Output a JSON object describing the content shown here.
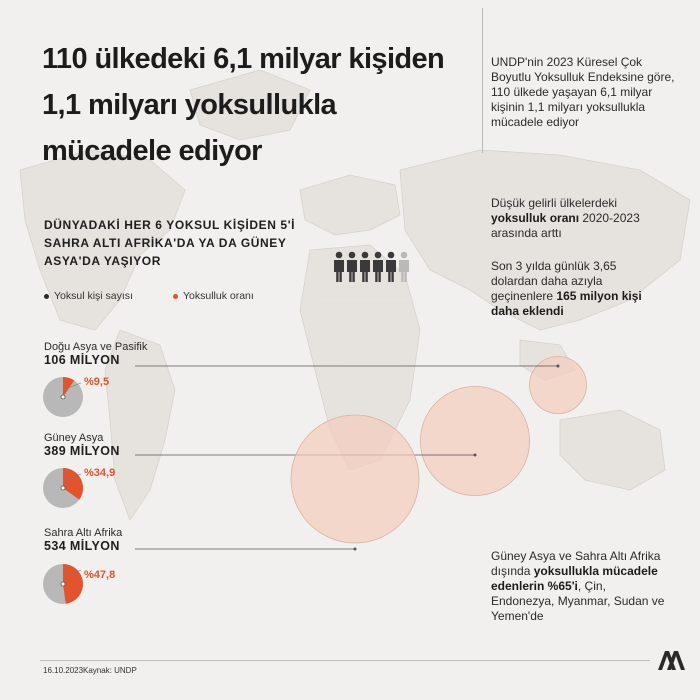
{
  "title": "110 ülkedeki 6,1 milyar kişiden 1,1 milyarı yoksullukla mücadele ediyor",
  "intro": "UNDP'nin 2023 Küresel Çok Boyutlu Yoksulluk Endeksine göre, 110 ülkede yaşayan 6,1 milyar kişinin 1,1 milyarı yoksullukla mücadele ediyor",
  "fact1": {
    "pre": "Düşük gelirli ülkelerdeki ",
    "bold": "yoksulluk oranı",
    "post": " 2020-2023 arasında arttı"
  },
  "fact2": {
    "pre": "Son 3 yılda günlük 3,65 dolardan daha azıyla geçinenlere ",
    "bold": "165 milyon kişi daha eklendi",
    "post": ""
  },
  "fact3": {
    "pre": "Güney Asya ve Sahra Altı Afrika dışında ",
    "bold": "yoksullukla mücadele edenlerin %65'i",
    "post": ", Çin, Endonezya, Myanmar, Sudan ve Yemen'de"
  },
  "subheading": "DÜNYADAKİ HER 6 YOKSUL KİŞİDEN 5'İ SAHRA ALTI AFRİKA'DA YA DA GÜNEY ASYA'DA YAŞIYOR",
  "people_icons": {
    "total": 6,
    "highlighted": 5,
    "dark_color": "#3a3a3a",
    "light_color": "#b9b9b9"
  },
  "legend": {
    "count_label": "Yoksul kişi sayısı",
    "rate_label": "Yoksulluk oranı",
    "count_color": "#2b2b2b",
    "rate_color": "#e2542e"
  },
  "colors": {
    "accent": "#e2542e",
    "bubble_fill": "#f4cdbd",
    "bubble_stroke": "#d9b2a2",
    "pie_base": "#b8b8b8"
  },
  "chart_data": {
    "type": "bubble",
    "series": [
      {
        "region": "Doğu Asya ve Pasifik",
        "count_label": "106 MİLYON",
        "count_millions": 106,
        "rate_label": "%9,5",
        "rate": 9.5
      },
      {
        "region": "Güney Asya",
        "count_label": "389 MİLYON",
        "count_millions": 389,
        "rate_label": "%34,9",
        "rate": 34.9
      },
      {
        "region": "Sahra Altı Afrika",
        "count_label": "534 MİLYON",
        "count_millions": 534,
        "rate_label": "%47,8",
        "rate": 47.8
      }
    ]
  },
  "footer": {
    "date": "16.10.2023",
    "source": "Kaynak: UNDP",
    "logo": "AA"
  }
}
